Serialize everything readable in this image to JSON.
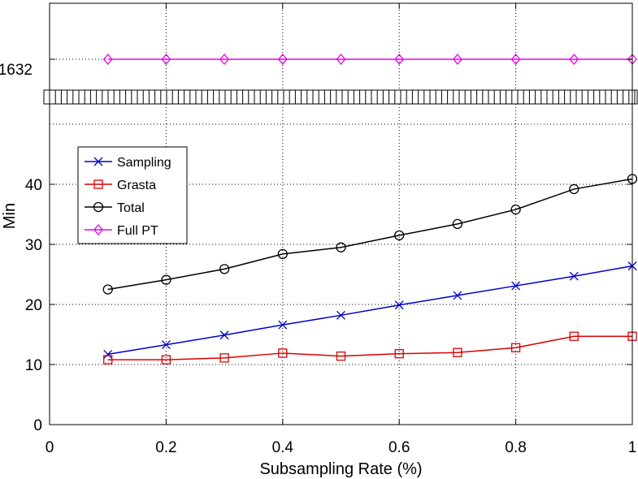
{
  "chart_data": {
    "type": "line",
    "title": "",
    "xlabel": "Subsampling Rate (%)",
    "ylabel": "Min",
    "xlim": [
      0,
      1
    ],
    "ylim_lower": [
      0,
      50
    ],
    "upper_break_value": 1632,
    "x_ticks": [
      0,
      0.2,
      0.4,
      0.6,
      0.8,
      1
    ],
    "x_tick_labels": [
      "0",
      "0.2",
      "0.4",
      "0.6",
      "0.8",
      "1"
    ],
    "y_ticks": [
      0,
      10,
      20,
      30,
      40
    ],
    "y_tick_labels": [
      "0",
      "10",
      "20",
      "30",
      "40"
    ],
    "upper_tick_label": "1632",
    "grid": true,
    "legend_position": "upper-left",
    "x": [
      0.1,
      0.2,
      0.3,
      0.4,
      0.5,
      0.6,
      0.7,
      0.8,
      0.9,
      1.0
    ],
    "series": [
      {
        "name": "Sampling",
        "color": "#0000cc",
        "marker": "x",
        "values": [
          11.7,
          13.3,
          14.9,
          16.6,
          18.2,
          19.9,
          21.5,
          23.1,
          24.7,
          26.4
        ]
      },
      {
        "name": "Grasta",
        "color": "#dd0000",
        "marker": "square",
        "values": [
          10.8,
          10.8,
          11.1,
          11.9,
          11.4,
          11.8,
          12.0,
          12.8,
          14.7,
          14.7
        ]
      },
      {
        "name": "Total",
        "color": "#000000",
        "marker": "circle",
        "values": [
          22.5,
          24.1,
          25.9,
          28.4,
          29.5,
          31.5,
          33.4,
          35.8,
          39.2,
          40.9
        ]
      },
      {
        "name": "Full PT",
        "color": "#ee00ee",
        "marker": "diamond",
        "values": [
          1632,
          1632,
          1632,
          1632,
          1632,
          1632,
          1632,
          1632,
          1632,
          1632
        ]
      }
    ]
  }
}
